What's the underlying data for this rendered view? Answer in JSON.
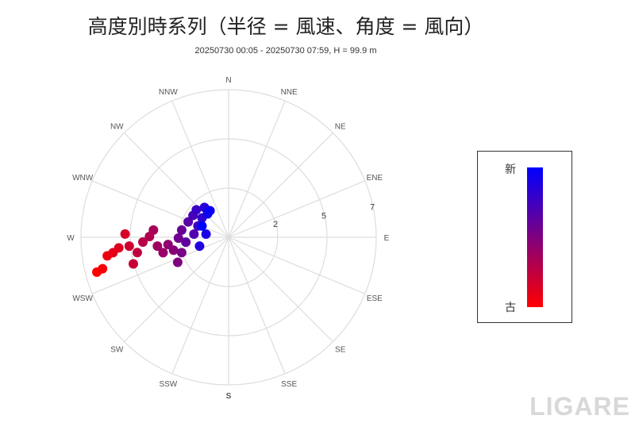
{
  "title": "高度別時系列（半径 = 風速、角度 = 風向）",
  "subtitle": "20250730 00:05 - 20250730 07:59, H = 99.9 m",
  "chart_data": {
    "type": "scatter",
    "coordinate": "polar",
    "title": "高度別時系列（半径 = 風速、角度 = 風向）",
    "subtitle": "20250730 00:05 - 20250730 07:59, H = 99.9 m",
    "angular_labels": [
      "N",
      "NNE",
      "NE",
      "ENE",
      "E",
      "ESE",
      "SE",
      "SSE",
      "S",
      "SSW",
      "SW",
      "WSW",
      "W",
      "WNW",
      "NW",
      "NNW"
    ],
    "radial_range": [
      0,
      7
    ],
    "radial_tick_labels": [
      "2",
      "5",
      "7"
    ],
    "grid": true,
    "color_scale": {
      "old": "#ff0000",
      "new": "#0000ff",
      "label_new": "新",
      "label_old": "古"
    },
    "points_old_to_new": [
      {
        "dir": 255.2,
        "speed": 6.46
      },
      {
        "dir": 256,
        "speed": 6.16
      },
      {
        "dir": 261.3,
        "speed": 5.82
      },
      {
        "dir": 262.4,
        "speed": 5.53
      },
      {
        "dir": 264.5,
        "speed": 5.23
      },
      {
        "dir": 271.8,
        "speed": 4.91
      },
      {
        "dir": 264.9,
        "speed": 4.73
      },
      {
        "dir": 254.4,
        "speed": 4.69
      },
      {
        "dir": 260.5,
        "speed": 4.39
      },
      {
        "dir": 266.8,
        "speed": 4.07
      },
      {
        "dir": 270.6,
        "speed": 3.75
      },
      {
        "dir": 275.5,
        "speed": 3.58
      },
      {
        "dir": 262.9,
        "speed": 3.4
      },
      {
        "dir": 256.8,
        "speed": 3.19
      },
      {
        "dir": 263.2,
        "speed": 2.89
      },
      {
        "dir": 256.8,
        "speed": 2.68
      },
      {
        "dir": 243.8,
        "speed": 2.69
      },
      {
        "dir": 251.9,
        "speed": 2.34
      },
      {
        "dir": 269.1,
        "speed": 2.38
      },
      {
        "dir": 278.8,
        "speed": 2.25
      },
      {
        "dir": 263.5,
        "speed": 2.04
      },
      {
        "dir": 290.8,
        "speed": 2.05
      },
      {
        "dir": 275.3,
        "speed": 1.65
      },
      {
        "dir": 301.5,
        "speed": 1.98
      },
      {
        "dir": 290.2,
        "speed": 1.55
      },
      {
        "dir": 310.4,
        "speed": 2.01
      },
      {
        "dir": 306,
        "speed": 1.56
      },
      {
        "dir": 321,
        "speed": 1.82
      },
      {
        "dir": 253,
        "speed": 1.44
      },
      {
        "dir": 278,
        "speed": 1.08
      },
      {
        "dir": 318.1,
        "speed": 1.49
      },
      {
        "dir": 325.1,
        "speed": 1.54
      },
      {
        "dir": 293,
        "speed": 1.37
      }
    ]
  },
  "watermark": "LIGARE"
}
